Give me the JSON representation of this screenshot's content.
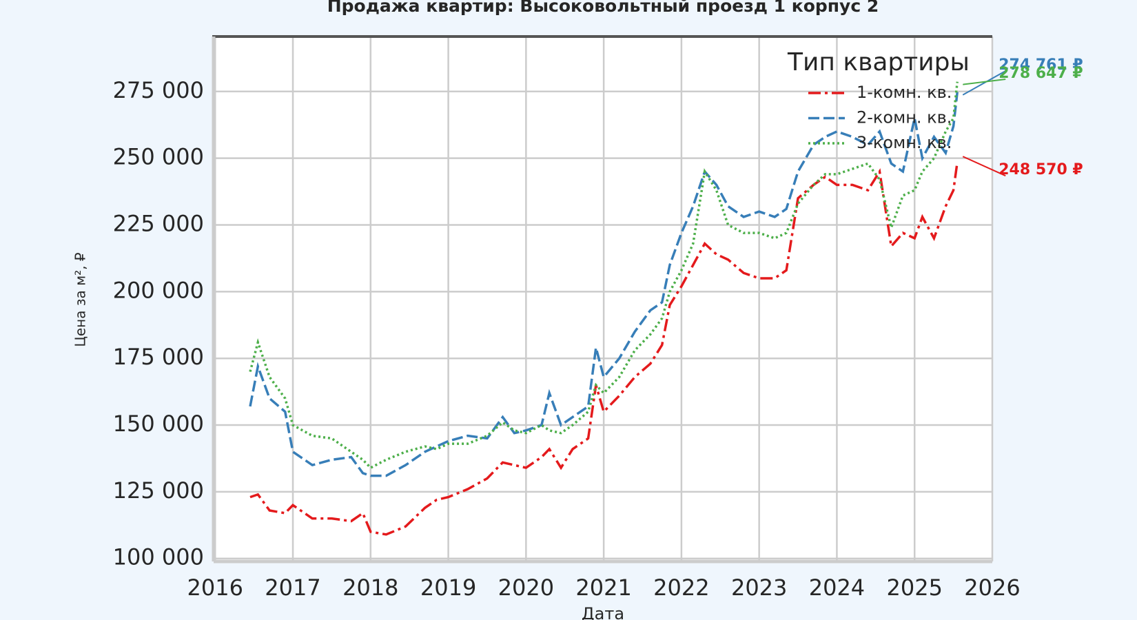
{
  "chart_data": {
    "type": "line",
    "title": "Продажа квартир: Высоковольтный проезд 1 корпус 2",
    "x_label": "Дата",
    "y_label": "Цена за м², ₽",
    "x": [
      2016.45,
      2016.55,
      2016.7,
      2016.9,
      2017.0,
      2017.25,
      2017.5,
      2017.75,
      2017.9,
      2018.0,
      2018.2,
      2018.45,
      2018.7,
      2018.85,
      2019.0,
      2019.25,
      2019.5,
      2019.7,
      2019.85,
      2020.0,
      2020.2,
      2020.3,
      2020.45,
      2020.6,
      2020.8,
      2020.9,
      2021.0,
      2021.2,
      2021.4,
      2021.6,
      2021.75,
      2021.85,
      2022.0,
      2022.15,
      2022.3,
      2022.45,
      2022.6,
      2022.8,
      2023.0,
      2023.2,
      2023.35,
      2023.5,
      2023.7,
      2023.85,
      2024.0,
      2024.2,
      2024.4,
      2024.55,
      2024.7,
      2024.85,
      2025.0,
      2025.1,
      2025.25,
      2025.4,
      2025.5,
      2025.55
    ],
    "series": [
      {
        "name": "1-комн. кв.",
        "color": "#e41a1c",
        "linestyle": "dashdot",
        "last_label": "248 570 ₽",
        "values": [
          123000,
          124000,
          118000,
          117000,
          120000,
          115000,
          115000,
          114000,
          117000,
          110000,
          109000,
          112000,
          119000,
          122000,
          123000,
          126000,
          130000,
          136000,
          135000,
          134000,
          138000,
          141000,
          134000,
          141000,
          145000,
          165000,
          155000,
          161000,
          168000,
          173000,
          180000,
          195000,
          202000,
          210000,
          218000,
          214000,
          212000,
          207000,
          205000,
          205000,
          208000,
          235000,
          240000,
          243000,
          240000,
          240000,
          238000,
          245000,
          217000,
          222000,
          220000,
          228000,
          220000,
          232000,
          238000,
          248570
        ]
      },
      {
        "name": "2-комн. кв.",
        "color": "#377eb8",
        "linestyle": "dashed",
        "last_label": "274 761 ₽",
        "values": [
          157000,
          172000,
          160000,
          155000,
          140000,
          135000,
          137000,
          138000,
          132000,
          131000,
          131000,
          135000,
          140000,
          142000,
          144000,
          146000,
          145000,
          153000,
          147000,
          148000,
          150000,
          162000,
          150000,
          153000,
          157000,
          179000,
          168000,
          175000,
          185000,
          193000,
          196000,
          210000,
          222000,
          232000,
          245000,
          240000,
          232000,
          228000,
          230000,
          228000,
          231000,
          245000,
          255000,
          258000,
          260000,
          258000,
          255000,
          260000,
          248000,
          245000,
          265000,
          250000,
          258000,
          252000,
          262000,
          274761
        ]
      },
      {
        "name": "3-комн. кв.",
        "color": "#4daf4a",
        "linestyle": "dotted",
        "last_label": "278 647 ₽",
        "values": [
          170000,
          181000,
          168000,
          160000,
          150000,
          146000,
          145000,
          140000,
          137000,
          134000,
          137000,
          140000,
          142000,
          141000,
          143000,
          143000,
          146000,
          151000,
          148000,
          147000,
          150000,
          148000,
          147000,
          150000,
          155000,
          165000,
          162000,
          168000,
          178000,
          184000,
          190000,
          200000,
          208000,
          218000,
          245000,
          238000,
          225000,
          222000,
          222000,
          220000,
          222000,
          233000,
          240000,
          244000,
          244000,
          246000,
          248000,
          242000,
          224000,
          236000,
          238000,
          245000,
          250000,
          260000,
          265000,
          278647
        ]
      }
    ],
    "xlim": [
      2015.98,
      2026
    ],
    "xticks": [
      2016,
      2017,
      2018,
      2019,
      2020,
      2021,
      2022,
      2023,
      2024,
      2025,
      2026
    ],
    "ylim": [
      98900,
      295600
    ],
    "yticks": [
      {
        "value": 100000,
        "label": "100 000"
      },
      {
        "value": 125000,
        "label": "125 000"
      },
      {
        "value": 150000,
        "label": "150 000"
      },
      {
        "value": 175000,
        "label": "175 000"
      },
      {
        "value": 200000,
        "label": "200 000"
      },
      {
        "value": 225000,
        "label": "225 000"
      },
      {
        "value": 250000,
        "label": "250 000"
      },
      {
        "value": 275000,
        "label": "275 000"
      }
    ],
    "grid": true,
    "legend_title": "Тип квартиры",
    "legend_loc": "upper right"
  }
}
